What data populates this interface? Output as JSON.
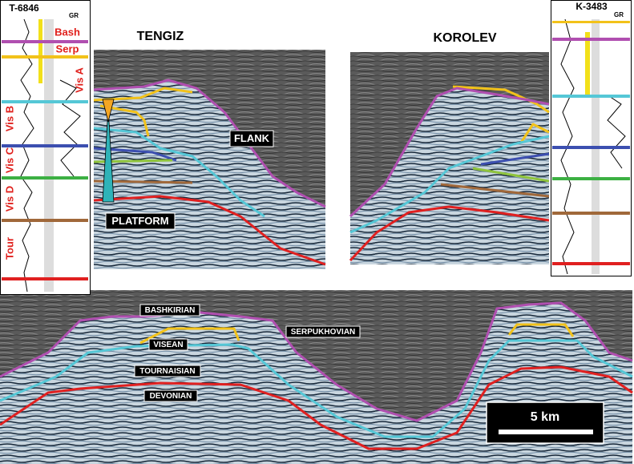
{
  "wells": [
    {
      "name": "T-6846",
      "log": "GR",
      "zones": [
        "Bash",
        "Serp",
        "Vis A",
        "Vis B",
        "Vis C",
        "Vis D",
        "Tour"
      ]
    },
    {
      "name": "K-3483",
      "log": "GR"
    }
  ],
  "panels": [
    {
      "title": "TENGIZ",
      "labels": [
        "FLANK",
        "PLATFORM"
      ]
    },
    {
      "title": "KOROLEV"
    }
  ],
  "section": {
    "horizons": [
      "BASHKIRIAN",
      "SERPUKHOVIAN",
      "VISEAN",
      "TOURNAISIAN",
      "DEVONIAN"
    ],
    "scale": "5 km"
  }
}
